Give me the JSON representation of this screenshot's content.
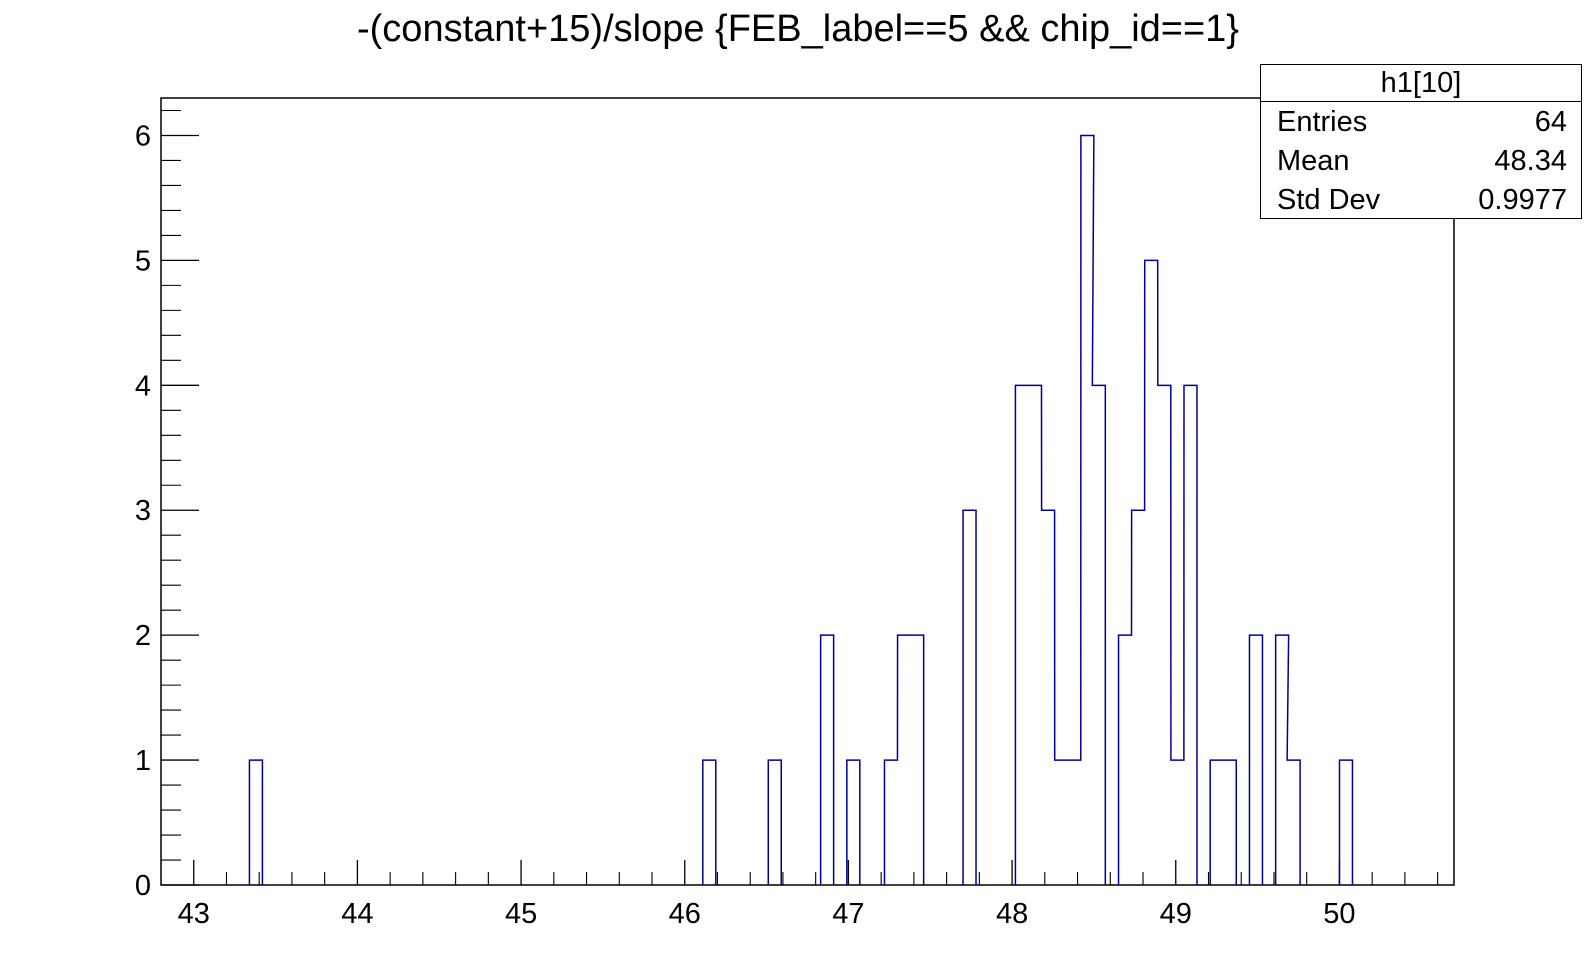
{
  "chart_data": {
    "type": "bar",
    "title": "-(constant+15)/slope {FEB_label==5 && chip_id==1}",
    "xlabel": "",
    "ylabel": "",
    "xlim": [
      42.8,
      50.7
    ],
    "ylim": [
      0,
      6.3
    ],
    "bin_width": 0.0793,
    "bins": [
      {
        "x": 43.38,
        "y": 1
      },
      {
        "x": 46.15,
        "y": 1
      },
      {
        "x": 46.55,
        "y": 1
      },
      {
        "x": 46.87,
        "y": 2
      },
      {
        "x": 47.03,
        "y": 1
      },
      {
        "x": 47.26,
        "y": 1
      },
      {
        "x": 47.34,
        "y": 2
      },
      {
        "x": 47.42,
        "y": 2
      },
      {
        "x": 47.74,
        "y": 3
      },
      {
        "x": 48.06,
        "y": 4
      },
      {
        "x": 48.14,
        "y": 4
      },
      {
        "x": 48.22,
        "y": 3
      },
      {
        "x": 48.3,
        "y": 1
      },
      {
        "x": 48.38,
        "y": 1
      },
      {
        "x": 48.46,
        "y": 6
      },
      {
        "x": 48.53,
        "y": 4
      },
      {
        "x": 48.69,
        "y": 2
      },
      {
        "x": 48.77,
        "y": 3
      },
      {
        "x": 48.85,
        "y": 5
      },
      {
        "x": 48.93,
        "y": 4
      },
      {
        "x": 49.01,
        "y": 1
      },
      {
        "x": 49.09,
        "y": 4
      },
      {
        "x": 49.25,
        "y": 1
      },
      {
        "x": 49.33,
        "y": 1
      },
      {
        "x": 49.49,
        "y": 2
      },
      {
        "x": 49.65,
        "y": 2
      },
      {
        "x": 49.72,
        "y": 1
      },
      {
        "x": 50.04,
        "y": 1
      }
    ],
    "x_ticks": [
      "43",
      "44",
      "45",
      "46",
      "47",
      "48",
      "49",
      "50"
    ],
    "y_ticks": [
      "0",
      "1",
      "2",
      "3",
      "4",
      "5",
      "6"
    ],
    "line_color": "#000099",
    "grid": false,
    "legend": "none"
  },
  "stats": {
    "name": "h1[10]",
    "rows": [
      {
        "label": "Entries",
        "value": "64"
      },
      {
        "label": "Mean",
        "value": "48.34"
      },
      {
        "label": "Std Dev",
        "value": "0.9977"
      }
    ]
  }
}
